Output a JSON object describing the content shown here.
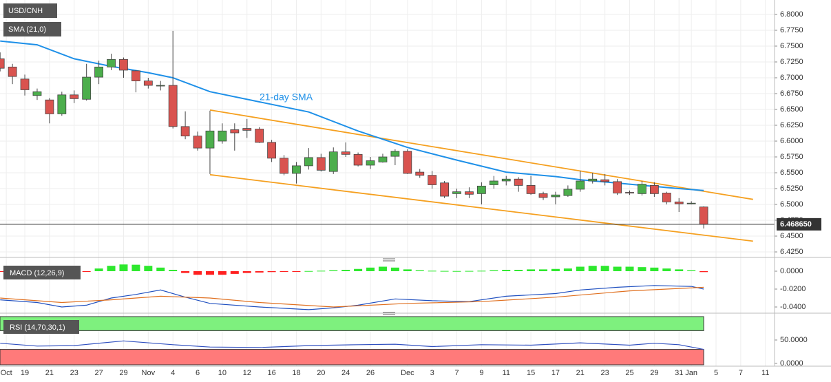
{
  "chart_data": [
    {
      "type": "candlestick",
      "title": "USD/CNH",
      "indicator": "SMA (21,0)",
      "annotation": "21-day SMA",
      "up_color": "#4cae4c",
      "down_color": "#d9534f",
      "grid": true,
      "xlim": [
        -1.01,
        61.74
      ],
      "ylim": [
        6.4185,
        6.8228
      ],
      "yticks": [
        {
          "value": 6.8,
          "label": "6.8000"
        },
        {
          "value": 6.775,
          "label": "6.7750"
        },
        {
          "value": 6.75,
          "label": "6.7500"
        },
        {
          "value": 6.725,
          "label": "6.7250"
        },
        {
          "value": 6.7,
          "label": "6.7000"
        },
        {
          "value": 6.675,
          "label": "6.6750"
        },
        {
          "value": 6.65,
          "label": "6.6500"
        },
        {
          "value": 6.625,
          "label": "6.6250"
        },
        {
          "value": 6.6,
          "label": "6.6000"
        },
        {
          "value": 6.575,
          "label": "6.5750"
        },
        {
          "value": 6.55,
          "label": "6.5500"
        },
        {
          "value": 6.525,
          "label": "6.5250"
        },
        {
          "value": 6.5,
          "label": "6.5000"
        },
        {
          "value": 6.475,
          "label": "6.4750"
        },
        {
          "value": 6.45,
          "label": "6.4500"
        },
        {
          "value": 6.425,
          "label": "6.4250"
        }
      ],
      "xticks": [
        {
          "value": -0.5,
          "label": "Oct"
        },
        {
          "value": 1,
          "label": "19"
        },
        {
          "value": 3,
          "label": "21"
        },
        {
          "value": 5,
          "label": "23"
        },
        {
          "value": 7,
          "label": "27"
        },
        {
          "value": 9,
          "label": "29"
        },
        {
          "value": 11,
          "label": "Nov"
        },
        {
          "value": 13,
          "label": "4"
        },
        {
          "value": 15,
          "label": "6"
        },
        {
          "value": 17,
          "label": "10"
        },
        {
          "value": 19,
          "label": "12"
        },
        {
          "value": 21,
          "label": "16"
        },
        {
          "value": 23,
          "label": "18"
        },
        {
          "value": 25,
          "label": "20"
        },
        {
          "value": 27,
          "label": "24"
        },
        {
          "value": 29,
          "label": "26"
        },
        {
          "value": 32,
          "label": "Dec"
        },
        {
          "value": 34,
          "label": "3"
        },
        {
          "value": 36,
          "label": "7"
        },
        {
          "value": 38,
          "label": "9"
        },
        {
          "value": 40,
          "label": "11"
        },
        {
          "value": 42,
          "label": "15"
        },
        {
          "value": 44,
          "label": "17"
        },
        {
          "value": 46,
          "label": "21"
        },
        {
          "value": 48,
          "label": "23"
        },
        {
          "value": 50,
          "label": "25"
        },
        {
          "value": 52,
          "label": "29"
        },
        {
          "value": 54,
          "label": "31"
        },
        {
          "value": 55,
          "label": "Jan"
        },
        {
          "value": 57,
          "label": "5"
        },
        {
          "value": 59,
          "label": "7"
        },
        {
          "value": 61,
          "label": "11"
        }
      ],
      "x": [
        -1,
        0,
        1,
        2,
        3,
        4,
        5,
        6,
        7,
        8,
        9,
        10,
        11,
        12,
        13,
        14,
        15,
        16,
        17,
        18,
        19,
        20,
        21,
        22,
        23,
        24,
        25,
        26,
        27,
        28,
        29,
        30,
        31,
        32,
        33,
        34,
        35,
        36,
        37,
        38,
        39,
        40,
        41,
        42,
        43,
        44,
        45,
        46,
        47,
        48,
        49,
        50,
        51,
        52,
        53,
        54,
        55,
        56
      ],
      "open": [
        6.73,
        6.717,
        6.698,
        6.672,
        6.665,
        6.643,
        6.673,
        6.666,
        6.701,
        6.717,
        6.729,
        6.711,
        6.695,
        6.688,
        6.688,
        6.623,
        6.608,
        6.589,
        6.6,
        6.618,
        6.62,
        6.619,
        6.598,
        6.573,
        6.549,
        6.561,
        6.574,
        6.552,
        6.583,
        6.579,
        6.562,
        6.567,
        6.576,
        6.584,
        6.551,
        6.546,
        6.534,
        6.517,
        6.52,
        6.517,
        6.531,
        6.537,
        6.54,
        6.53,
        6.517,
        6.512,
        6.514,
        6.524,
        6.537,
        6.539,
        6.536,
        6.519,
        6.517,
        6.53,
        6.518,
        6.504,
        6.502,
        6.496
      ],
      "high": [
        6.74,
        6.722,
        6.705,
        6.683,
        6.668,
        6.678,
        6.68,
        6.722,
        6.727,
        6.738,
        6.732,
        6.712,
        6.7,
        6.695,
        6.774,
        6.647,
        6.615,
        6.648,
        6.628,
        6.628,
        6.635,
        6.622,
        6.602,
        6.578,
        6.567,
        6.589,
        6.58,
        6.59,
        6.598,
        6.582,
        6.575,
        6.58,
        6.587,
        6.587,
        6.556,
        6.553,
        6.537,
        6.525,
        6.527,
        6.535,
        6.545,
        6.545,
        6.543,
        6.545,
        6.52,
        6.52,
        6.53,
        6.553,
        6.55,
        6.548,
        6.54,
        6.522,
        6.537,
        6.535,
        6.52,
        6.51,
        6.505,
        6.497
      ],
      "low": [
        6.71,
        6.69,
        6.672,
        6.665,
        6.628,
        6.64,
        6.66,
        6.664,
        6.69,
        6.712,
        6.7,
        6.677,
        6.683,
        6.68,
        6.62,
        6.603,
        6.585,
        6.548,
        6.596,
        6.585,
        6.605,
        6.597,
        6.567,
        6.546,
        6.533,
        6.555,
        6.552,
        6.548,
        6.575,
        6.56,
        6.556,
        6.566,
        6.562,
        6.548,
        6.542,
        6.525,
        6.51,
        6.51,
        6.51,
        6.5,
        6.525,
        6.53,
        6.52,
        6.515,
        6.507,
        6.5,
        6.512,
        6.52,
        6.533,
        6.53,
        6.515,
        6.515,
        6.514,
        6.512,
        6.5,
        6.488,
        6.5,
        6.462
      ],
      "close": [
        6.715,
        6.702,
        6.681,
        6.678,
        6.643,
        6.673,
        6.667,
        6.701,
        6.717,
        6.729,
        6.712,
        6.695,
        6.688,
        6.688,
        6.623,
        6.608,
        6.589,
        6.616,
        6.616,
        6.613,
        6.617,
        6.598,
        6.573,
        6.549,
        6.561,
        6.574,
        6.554,
        6.583,
        6.579,
        6.562,
        6.569,
        6.575,
        6.584,
        6.549,
        6.546,
        6.531,
        6.513,
        6.52,
        6.516,
        6.529,
        6.537,
        6.54,
        6.53,
        6.517,
        6.511,
        6.515,
        6.524,
        6.537,
        6.54,
        6.536,
        6.518,
        6.518,
        6.532,
        6.517,
        6.504,
        6.501,
        6.502,
        6.4687
      ],
      "sma": {
        "color": "#1e90e8",
        "x": [
          -1,
          2,
          5,
          8,
          11,
          13,
          16,
          20,
          24,
          28,
          32,
          36,
          40,
          44,
          46,
          50,
          54,
          56
        ],
        "values": [
          6.758,
          6.752,
          6.73,
          6.718,
          6.708,
          6.7,
          6.678,
          6.662,
          6.646,
          6.616,
          6.59,
          6.57,
          6.551,
          6.544,
          6.539,
          6.532,
          6.525,
          6.522
        ]
      },
      "channels": [
        {
          "color": "#f5a020",
          "x": [
            16,
            60
          ],
          "values": [
            6.649,
            6.508
          ]
        },
        {
          "color": "#f5a020",
          "x": [
            16,
            60
          ],
          "values": [
            6.547,
            6.442
          ]
        }
      ],
      "last_price": {
        "value": 6.46865,
        "label": "6.468650"
      }
    },
    {
      "type": "macd",
      "title": "MACD (12,26,9)",
      "ylim": [
        -0.0446,
        0.0123
      ],
      "xlim": [
        -1.01,
        61.74
      ],
      "yticks": [
        {
          "value": 0,
          "label": "0.0000"
        },
        {
          "value": -0.02,
          "label": "-0.0200"
        },
        {
          "value": -0.04,
          "label": "-0.0400"
        }
      ],
      "up_color": "#2ee82e",
      "down_color": "#ff2020",
      "histogram": {
        "x": [
          -1,
          0,
          1,
          2,
          3,
          4,
          5,
          6,
          7,
          8,
          9,
          10,
          11,
          12,
          13,
          14,
          15,
          16,
          17,
          18,
          19,
          20,
          21,
          22,
          23,
          24,
          25,
          26,
          27,
          28,
          29,
          30,
          31,
          32,
          33,
          34,
          35,
          36,
          37,
          38,
          39,
          40,
          41,
          42,
          43,
          44,
          45,
          46,
          47,
          48,
          49,
          50,
          51,
          52,
          53,
          54,
          55,
          56
        ],
        "values": [
          -0.0008,
          -0.0008,
          -0.0008,
          -0.0008,
          -0.0008,
          -0.0008,
          -0.0008,
          -0.0008,
          0.003,
          0.006,
          0.0075,
          0.0072,
          0.006,
          0.004,
          0.0015,
          -0.002,
          -0.004,
          -0.004,
          -0.004,
          -0.003,
          -0.002,
          -0.0015,
          -0.001,
          -0.0005,
          -0.0002,
          0.0002,
          0.0005,
          0.001,
          0.0015,
          0.0025,
          0.004,
          0.005,
          0.004,
          0.002,
          0.001,
          0.0005,
          0.0003,
          0.0002,
          0.0003,
          0.0005,
          0.001,
          0.0015,
          0.0015,
          0.002,
          0.002,
          0.0025,
          0.003,
          0.005,
          0.006,
          0.006,
          0.005,
          0.005,
          0.0045,
          0.004,
          0.003,
          0.002,
          0.001,
          -0.001
        ]
      },
      "series": [
        {
          "color": "#2050c0",
          "x": [
            -1,
            2,
            4,
            6,
            8,
            10,
            12,
            14,
            16,
            20,
            24,
            26,
            28,
            31,
            34,
            37,
            40,
            44,
            46,
            49,
            52,
            55,
            56
          ],
          "values": [
            -0.032,
            -0.035,
            -0.04,
            -0.038,
            -0.03,
            -0.026,
            -0.021,
            -0.029,
            -0.036,
            -0.04,
            -0.043,
            -0.041,
            -0.038,
            -0.031,
            -0.033,
            -0.034,
            -0.028,
            -0.025,
            -0.021,
            -0.018,
            -0.016,
            -0.017,
            -0.02
          ]
        },
        {
          "color": "#e07020",
          "x": [
            -1,
            4,
            8,
            12,
            16,
            20,
            26,
            32,
            38,
            44,
            50,
            56
          ],
          "values": [
            -0.03,
            -0.035,
            -0.032,
            -0.028,
            -0.03,
            -0.035,
            -0.04,
            -0.036,
            -0.034,
            -0.029,
            -0.022,
            -0.018
          ]
        }
      ]
    },
    {
      "type": "rsi",
      "title": "RSI (14,70,30,1)",
      "ylim": [
        -3,
        100
      ],
      "xlim": [
        -1.01,
        61.74
      ],
      "yticks": [
        {
          "value": 50,
          "label": "50.0000"
        },
        {
          "value": 0,
          "label": "0.0000"
        }
      ],
      "overbought": 70,
      "oversold": 30,
      "overbought_color": "#7ef07e",
      "oversold_color": "#ff7a7a",
      "series": [
        {
          "color": "#3050c0",
          "x": [
            -1,
            2,
            5,
            9,
            13,
            16,
            20,
            24,
            28,
            31,
            34,
            38,
            42,
            46,
            50,
            52,
            54,
            56
          ],
          "values": [
            43,
            37,
            38,
            48,
            40,
            35,
            34,
            38,
            40,
            41,
            36,
            40,
            39,
            44,
            39,
            43,
            40,
            30
          ]
        }
      ]
    }
  ]
}
